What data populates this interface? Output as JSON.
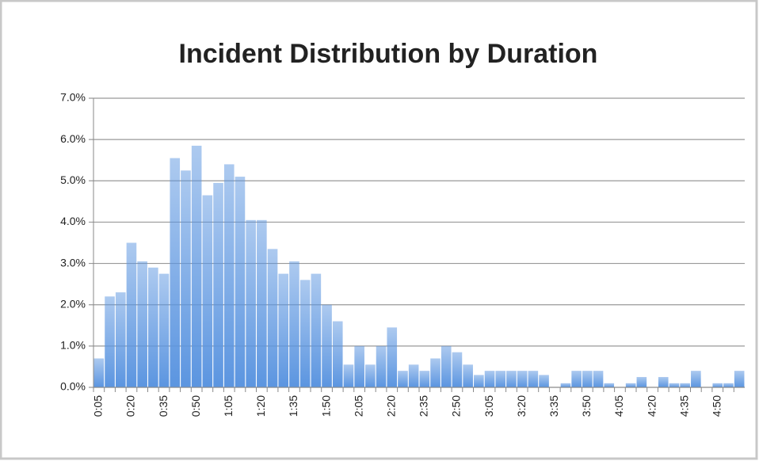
{
  "chart_data": {
    "type": "bar",
    "title": "Incident Distribution by Duration",
    "color": "#5b95e0",
    "categories": [
      "0:05",
      null,
      null,
      "0:20",
      null,
      null,
      "0:35",
      null,
      null,
      "0:50",
      null,
      null,
      "1:05",
      null,
      null,
      "1:20",
      null,
      null,
      "1:35",
      null,
      null,
      "1:50",
      null,
      null,
      "2:05",
      null,
      null,
      "2:20",
      null,
      null,
      "2:35",
      null,
      null,
      "2:50",
      null,
      null,
      "3:05",
      null,
      null,
      "3:20",
      null,
      null,
      "3:35",
      null,
      null,
      "3:50",
      null,
      null,
      "4:05",
      null,
      null,
      "4:20",
      null,
      null,
      "4:35",
      null,
      null,
      "4:50",
      null,
      null
    ],
    "values": [
      0.7,
      2.2,
      2.3,
      3.5,
      3.05,
      2.9,
      2.75,
      5.55,
      5.25,
      5.85,
      4.65,
      4.95,
      5.4,
      5.1,
      4.05,
      4.05,
      3.35,
      2.75,
      3.05,
      2.6,
      2.75,
      2.0,
      1.6,
      0.55,
      1.0,
      0.55,
      1.0,
      1.45,
      0.4,
      0.55,
      0.4,
      0.7,
      1.0,
      0.85,
      0.55,
      0.3,
      0.4,
      0.4,
      0.4,
      0.4,
      0.4,
      0.3,
      0,
      0.1,
      0.4,
      0.4,
      0.4,
      0.1,
      0,
      0.1,
      0.25,
      0,
      0.25,
      0.1,
      0.1,
      0.4,
      0,
      0.1,
      0.1,
      0.4
    ],
    "ylim": [
      0,
      7
    ],
    "yticks": [
      {
        "value": 0,
        "label": "0.0%"
      },
      {
        "value": 1,
        "label": "1.0%"
      },
      {
        "value": 2,
        "label": "2.0%"
      },
      {
        "value": 3,
        "label": "3.0%"
      },
      {
        "value": 4,
        "label": "4.0%"
      },
      {
        "value": 5,
        "label": "5.0%"
      },
      {
        "value": 6,
        "label": "6.0%"
      },
      {
        "value": 7,
        "label": "7.0%"
      }
    ],
    "grid": true
  }
}
